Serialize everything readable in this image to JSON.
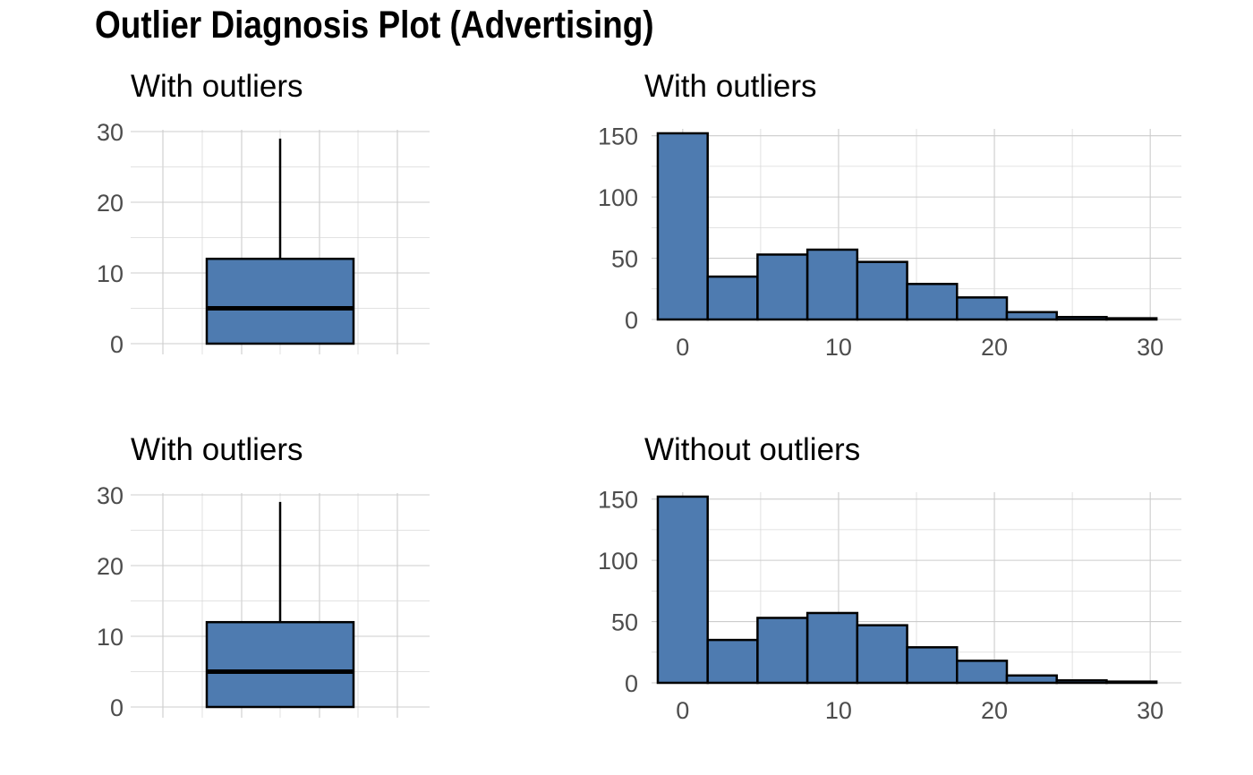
{
  "title": "Outlier Diagnosis Plot (Advertising)",
  "colors": {
    "fill": "#4e7bb0",
    "outline": "#000000",
    "grid": "#cccccc"
  },
  "chart_data": [
    {
      "type": "box",
      "title": "With outliers",
      "ylim": [
        0,
        30
      ],
      "yticks": [
        0,
        10,
        20,
        30
      ],
      "min": 0,
      "q1": 0,
      "median": 5,
      "q3": 12,
      "max": 29
    },
    {
      "type": "bar",
      "title": "With outliers",
      "xlim": [
        -2,
        32
      ],
      "ylim": [
        0,
        160
      ],
      "xticks": [
        0,
        10,
        20,
        30
      ],
      "yticks": [
        0,
        50,
        100,
        150
      ],
      "bin_edges": [
        -1.6,
        1.6,
        4.8,
        8.0,
        11.2,
        14.4,
        17.6,
        20.8,
        24.0,
        27.2,
        30.4
      ],
      "counts": [
        152,
        35,
        53,
        57,
        47,
        29,
        18,
        6,
        2,
        1
      ]
    },
    {
      "type": "box",
      "title": "With outliers",
      "ylim": [
        0,
        30
      ],
      "yticks": [
        0,
        10,
        20,
        30
      ],
      "min": 0,
      "q1": 0,
      "median": 5,
      "q3": 12,
      "max": 29
    },
    {
      "type": "bar",
      "title": "Without outliers",
      "xlim": [
        -2,
        32
      ],
      "ylim": [
        0,
        160
      ],
      "xticks": [
        0,
        10,
        20,
        30
      ],
      "yticks": [
        0,
        50,
        100,
        150
      ],
      "bin_edges": [
        -1.6,
        1.6,
        4.8,
        8.0,
        11.2,
        14.4,
        17.6,
        20.8,
        24.0,
        27.2,
        30.4
      ],
      "counts": [
        152,
        35,
        53,
        57,
        47,
        29,
        18,
        6,
        2,
        1
      ]
    }
  ]
}
